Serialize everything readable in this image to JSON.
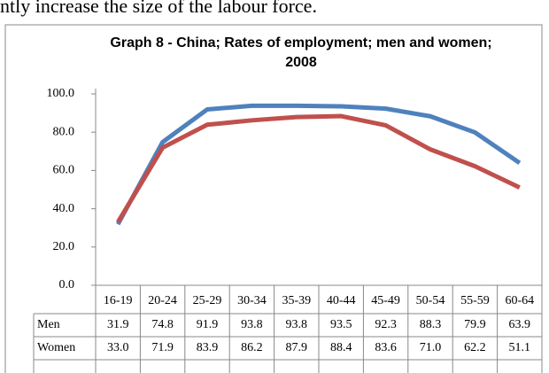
{
  "document_text": "ntly increase the size of the labour force.",
  "chart_data": {
    "type": "line",
    "title": "Graph 8 - China; Rates of employment; men and women; 2008",
    "categories": [
      "16-19",
      "20-24",
      "25-29",
      "30-34",
      "35-39",
      "40-44",
      "45-49",
      "50-54",
      "55-59",
      "60-64"
    ],
    "series": [
      {
        "name": "Men",
        "color": "#4f81bd",
        "values": [
          31.9,
          74.8,
          91.9,
          93.8,
          93.8,
          93.5,
          92.3,
          88.3,
          79.9,
          63.9
        ],
        "value_labels": [
          "31.9",
          "74.8",
          "91.9",
          "93.8",
          "93.8",
          "93.5",
          "92.3",
          "88.3",
          "79.9",
          "63.9"
        ]
      },
      {
        "name": "Women",
        "color": "#c0504d",
        "values": [
          33.0,
          71.9,
          83.9,
          86.2,
          87.9,
          88.4,
          83.6,
          71.0,
          62.2,
          51.1
        ],
        "value_labels": [
          "33.0",
          "71.9",
          "83.9",
          "86.2",
          "87.9",
          "88.4",
          "83.6",
          "71.0",
          "62.2",
          "51.1"
        ]
      }
    ],
    "ylim": [
      0,
      100
    ],
    "yticks": [
      {
        "value": 0,
        "label": "0.0"
      },
      {
        "value": 20,
        "label": "20.0"
      },
      {
        "value": 40,
        "label": "40.0"
      },
      {
        "value": 60,
        "label": "60.0"
      },
      {
        "value": 80,
        "label": "80.0"
      },
      {
        "value": 100,
        "label": "100.0"
      }
    ],
    "grid": false
  }
}
